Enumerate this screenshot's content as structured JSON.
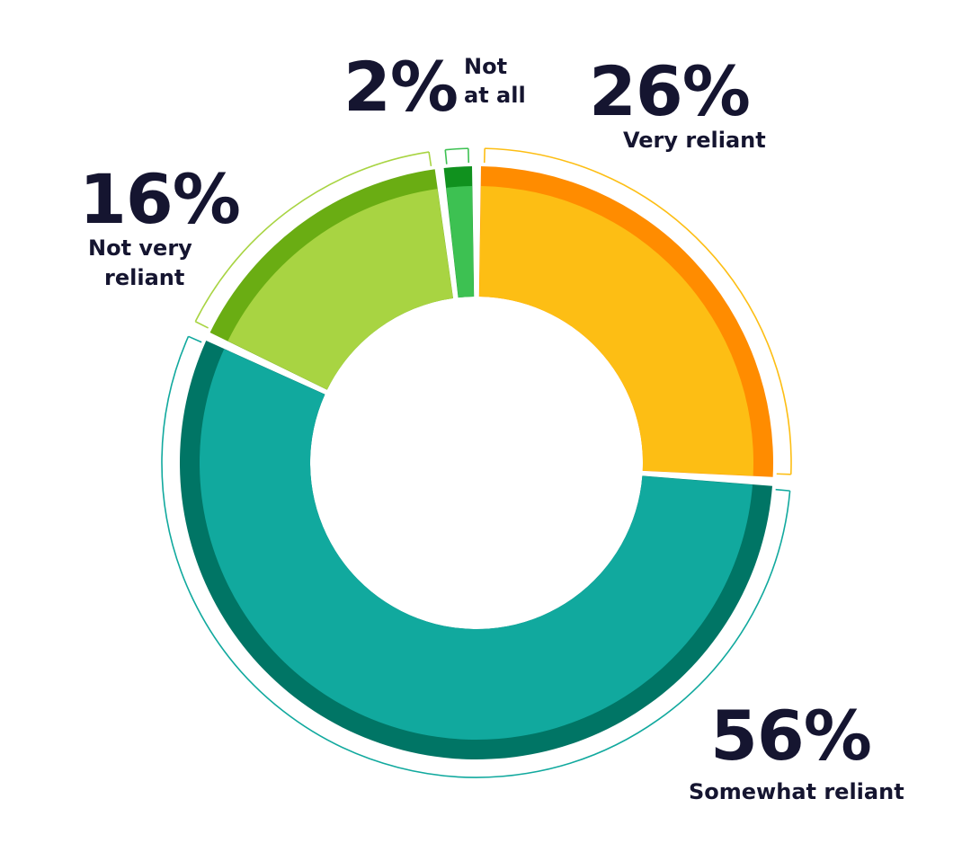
{
  "chart_data": {
    "type": "pie",
    "variant": "donut",
    "title": "",
    "legend": "none",
    "slices": [
      {
        "label": "Very reliant",
        "label_lines": [
          "Very reliant"
        ],
        "value": 26,
        "percent_label": "26%",
        "color": "#FDBE14",
        "rim_color": "#FF8C00",
        "callout_color": "#FDBE14"
      },
      {
        "label": "Somewhat reliant",
        "label_lines": [
          "Somewhat reliant"
        ],
        "value": 56,
        "percent_label": "56%",
        "color": "#11A99E",
        "rim_color": "#007565",
        "callout_color": "#11A99E"
      },
      {
        "label": "Not very reliant",
        "label_lines": [
          "Not very",
          "reliant"
        ],
        "value": 16,
        "percent_label": "16%",
        "color": "#A8D442",
        "rim_color": "#6AAD13",
        "callout_color": "#A8D442"
      },
      {
        "label": "Not at all",
        "label_lines": [
          "Not",
          "at all"
        ],
        "value": 2,
        "percent_label": "2%",
        "color": "#3DC152",
        "rim_color": "#10911E",
        "callout_color": "#3DC152"
      }
    ]
  }
}
